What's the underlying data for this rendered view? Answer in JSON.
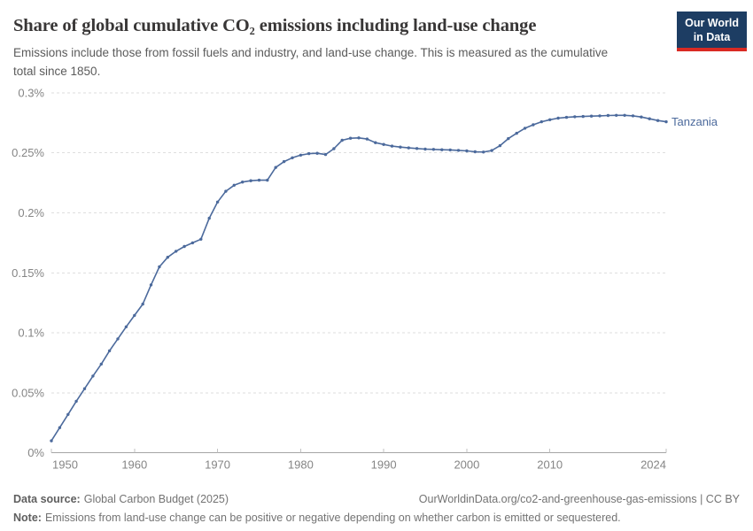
{
  "header": {
    "title": "Share of global cumulative CO₂ emissions including land-use change",
    "subtitle": "Emissions include those from fossil fuels and industry, and land-use change. This is measured as the cumulative total since 1850.",
    "logo_lines": [
      "Our World",
      "in Data"
    ]
  },
  "footer": {
    "data_source_label": "Data source:",
    "data_source_value": "Global Carbon Budget (2025)",
    "link_text": "OurWorldinData.org/co2-and-greenhouse-gas-emissions | CC BY",
    "note_label": "Note:",
    "note_text": "Emissions from land-use change can be positive or negative depending on whether carbon is emitted or sequestered."
  },
  "colors": {
    "series_blue": "#4C6A9C",
    "title_text": "#383636",
    "subtitle_text": "#5b5b5b",
    "axis_text": "#858585",
    "gridline": "#dedede",
    "axis_line": "#a5a5a5",
    "tick": "#c2c2c2",
    "footer_text": "#737373",
    "footer_bold": "#5f5f5f",
    "logo_bg": "#1d3d63",
    "logo_red": "#d92a23"
  },
  "chart_data": {
    "type": "line",
    "title": "Share of global cumulative CO₂ emissions including land-use change",
    "xlabel": "",
    "ylabel": "",
    "unit": "%",
    "grid": "horizontal-dashed",
    "markers": true,
    "legend_position": "end-of-line-label",
    "end_label": "Tanzania",
    "xlim": [
      1950,
      2024
    ],
    "ylim": [
      0,
      0.3
    ],
    "x_ticks": [
      1950,
      1960,
      1970,
      1980,
      1990,
      2000,
      2010,
      2024
    ],
    "x_tick_labels": [
      "1950",
      "1960",
      "1970",
      "1980",
      "1990",
      "2000",
      "2010",
      "2024"
    ],
    "y_ticks": [
      0,
      0.05,
      0.1,
      0.15,
      0.2,
      0.25,
      0.3
    ],
    "y_tick_labels": [
      "0%",
      "0.05%",
      "0.1%",
      "0.15%",
      "0.2%",
      "0.25%",
      "0.3%"
    ],
    "x": [
      1950,
      1951,
      1952,
      1953,
      1954,
      1955,
      1956,
      1957,
      1958,
      1959,
      1960,
      1961,
      1962,
      1963,
      1964,
      1965,
      1966,
      1967,
      1968,
      1969,
      1970,
      1971,
      1972,
      1973,
      1974,
      1975,
      1976,
      1977,
      1978,
      1979,
      1980,
      1981,
      1982,
      1983,
      1984,
      1985,
      1986,
      1987,
      1988,
      1989,
      1990,
      1991,
      1992,
      1993,
      1994,
      1995,
      1996,
      1997,
      1998,
      1999,
      2000,
      2001,
      2002,
      2003,
      2004,
      2005,
      2006,
      2007,
      2008,
      2009,
      2010,
      2011,
      2012,
      2013,
      2014,
      2015,
      2016,
      2017,
      2018,
      2019,
      2020,
      2021,
      2022,
      2023,
      2024
    ],
    "series": [
      {
        "name": "Tanzania",
        "color": "#4C6A9C",
        "values": [
          0.01,
          0.021,
          0.032,
          0.043,
          0.0535,
          0.064,
          0.074,
          0.085,
          0.095,
          0.105,
          0.1145,
          0.124,
          0.14,
          0.155,
          0.163,
          0.168,
          0.172,
          0.175,
          0.178,
          0.1955,
          0.209,
          0.218,
          0.223,
          0.2257,
          0.2268,
          0.2272,
          0.2272,
          0.2378,
          0.2427,
          0.2459,
          0.2481,
          0.2493,
          0.2496,
          0.2486,
          0.2535,
          0.2605,
          0.2622,
          0.2625,
          0.2615,
          0.2585,
          0.257,
          0.2556,
          0.2548,
          0.2541,
          0.2536,
          0.2531,
          0.2529,
          0.2526,
          0.2524,
          0.2521,
          0.2516,
          0.2509,
          0.2507,
          0.2519,
          0.256,
          0.2619,
          0.2663,
          0.2705,
          0.2734,
          0.2759,
          0.2776,
          0.2789,
          0.2796,
          0.2801,
          0.2803,
          0.2806,
          0.2808,
          0.2811,
          0.2813,
          0.2813,
          0.2808,
          0.2799,
          0.2784,
          0.2769,
          0.2759
        ]
      }
    ]
  }
}
